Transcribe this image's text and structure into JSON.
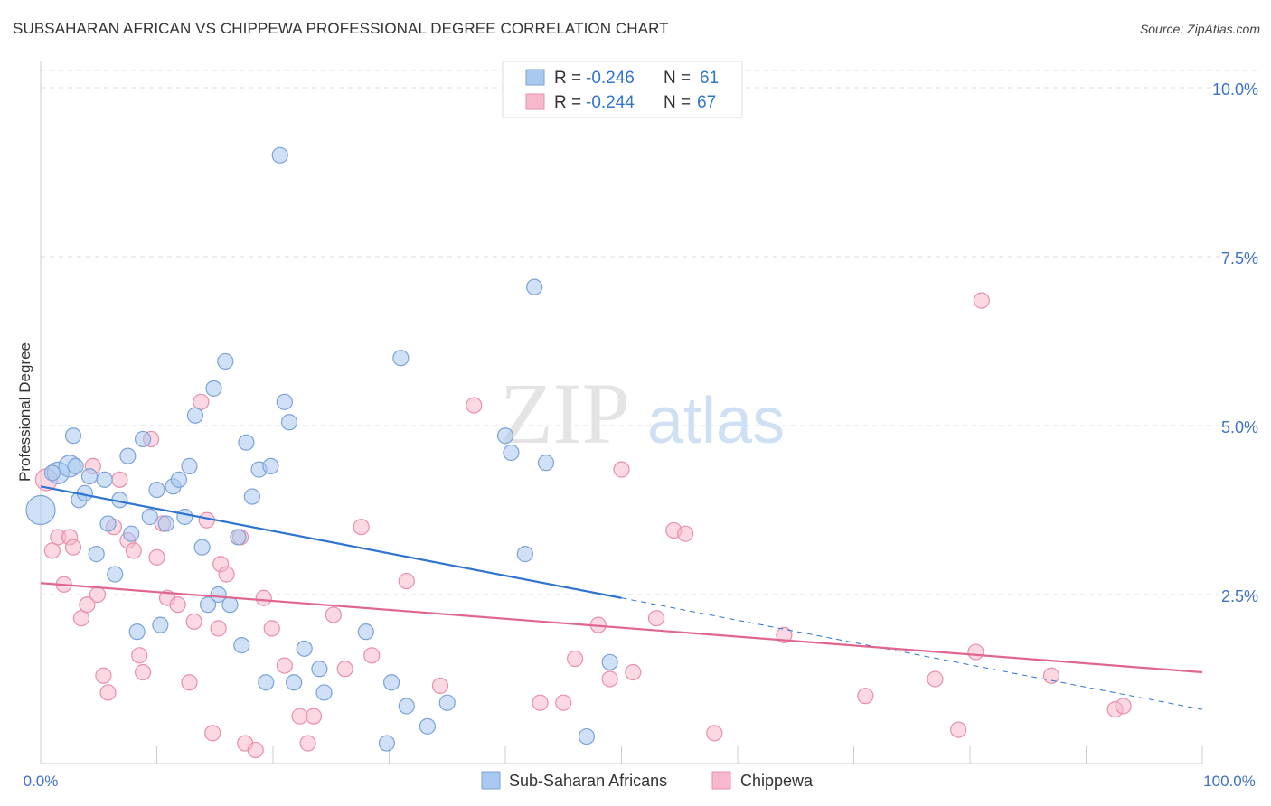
{
  "title": "SUBSAHARAN AFRICAN VS CHIPPEWA PROFESSIONAL DEGREE CORRELATION CHART",
  "source": "Source: ZipAtlas.com",
  "watermark": {
    "zip": "ZIP",
    "atlas": "atlas"
  },
  "colors": {
    "blue_fill": "#a9c8f0",
    "blue_stroke": "#7ba3d8",
    "blue_line": "#2f74d0",
    "pink_fill": "#f7b8cb",
    "pink_stroke": "#e88fac",
    "pink_line": "#e06690",
    "axis_label": "#3f73c4",
    "grid": "#dddddd"
  },
  "legend_top": {
    "rows": [
      {
        "r_label": "R =",
        "r_value": "-0.246",
        "n_label": "N =",
        "n_value": "61"
      },
      {
        "r_label": "R =",
        "r_value": "-0.244",
        "n_label": "N =",
        "n_value": "67"
      }
    ]
  },
  "legend_bottom": [
    "Sub-Saharan Africans",
    "Chippewa"
  ],
  "chart_data": {
    "type": "scatter",
    "title": "SUBSAHARAN AFRICAN VS CHIPPEWA PROFESSIONAL DEGREE CORRELATION CHART",
    "xlabel": "",
    "ylabel": "Professional Degree",
    "xlim": [
      0,
      100
    ],
    "ylim": [
      0,
      10.5
    ],
    "x_tick_labels": [
      "0.0%",
      "100.0%"
    ],
    "y_ticks": [
      2.5,
      5.0,
      7.5,
      10.0
    ],
    "y_tick_labels": [
      "2.5%",
      "5.0%",
      "7.5%",
      "10.0%"
    ],
    "grid": true,
    "legend_position": "top-center",
    "series": [
      {
        "name": "Sub-Saharan Africans",
        "r": -0.246,
        "n": 61,
        "trend": {
          "x0": 0,
          "y0": 4.1,
          "x1": 50,
          "y1": 2.45,
          "dash_to_x": 100,
          "dash_to_y": 0.8
        },
        "points": [
          [
            0,
            3.75,
            3
          ],
          [
            1.5,
            4.3,
            2
          ],
          [
            2.5,
            4.4,
            2
          ],
          [
            2.8,
            4.85,
            1
          ],
          [
            3.3,
            3.9,
            1
          ],
          [
            3.8,
            4.0,
            1
          ],
          [
            4.2,
            4.25,
            1
          ],
          [
            4.8,
            3.1,
            1
          ],
          [
            5.5,
            4.2,
            1
          ],
          [
            5.8,
            3.55,
            1
          ],
          [
            6.4,
            2.8,
            1
          ],
          [
            6.8,
            3.9,
            1
          ],
          [
            7.5,
            4.55,
            1
          ],
          [
            7.8,
            3.4,
            1
          ],
          [
            8.3,
            1.95,
            1
          ],
          [
            8.8,
            4.8,
            1
          ],
          [
            9.4,
            3.65,
            1
          ],
          [
            10.0,
            4.05,
            1
          ],
          [
            10.3,
            2.05,
            1
          ],
          [
            10.8,
            3.55,
            1
          ],
          [
            11.4,
            4.1,
            1
          ],
          [
            11.9,
            4.2,
            1
          ],
          [
            12.4,
            3.65,
            1
          ],
          [
            12.8,
            4.4,
            1
          ],
          [
            13.3,
            5.15,
            1
          ],
          [
            13.9,
            3.2,
            1
          ],
          [
            14.4,
            2.35,
            1
          ],
          [
            14.9,
            5.55,
            1
          ],
          [
            15.3,
            2.5,
            1
          ],
          [
            15.9,
            5.95,
            1
          ],
          [
            16.3,
            2.35,
            1
          ],
          [
            17.0,
            3.35,
            1
          ],
          [
            17.3,
            1.75,
            1
          ],
          [
            17.7,
            4.75,
            1
          ],
          [
            18.2,
            3.95,
            1
          ],
          [
            18.8,
            4.35,
            1
          ],
          [
            19.4,
            1.2,
            1
          ],
          [
            19.8,
            4.4,
            1
          ],
          [
            20.6,
            9.0,
            1
          ],
          [
            21.0,
            5.35,
            1
          ],
          [
            21.4,
            5.05,
            1
          ],
          [
            21.8,
            1.2,
            1
          ],
          [
            22.7,
            1.7,
            1
          ],
          [
            24.0,
            1.4,
            1
          ],
          [
            24.4,
            1.05,
            1
          ],
          [
            28.0,
            1.95,
            1
          ],
          [
            29.8,
            0.3,
            1
          ],
          [
            30.2,
            1.2,
            1
          ],
          [
            31.0,
            6.0,
            1
          ],
          [
            31.5,
            0.85,
            1
          ],
          [
            33.3,
            0.55,
            1
          ],
          [
            35.0,
            0.9,
            1
          ],
          [
            40.0,
            4.85,
            1
          ],
          [
            40.5,
            4.6,
            1
          ],
          [
            41.7,
            3.1,
            1
          ],
          [
            42.5,
            7.05,
            1
          ],
          [
            43.5,
            4.45,
            1
          ],
          [
            47.0,
            0.4,
            1
          ],
          [
            49.0,
            1.5,
            1
          ],
          [
            1.0,
            4.3,
            1
          ],
          [
            3.0,
            4.4,
            1
          ]
        ]
      },
      {
        "name": "Chippewa",
        "r": -0.244,
        "n": 67,
        "trend": {
          "x0": 0,
          "y0": 2.67,
          "x1": 100,
          "y1": 1.35
        },
        "points": [
          [
            0.5,
            4.2,
            2
          ],
          [
            1.0,
            3.15,
            1
          ],
          [
            1.5,
            3.35,
            1
          ],
          [
            2.0,
            2.65,
            1
          ],
          [
            2.5,
            3.35,
            1
          ],
          [
            2.8,
            3.2,
            1
          ],
          [
            3.5,
            2.15,
            1
          ],
          [
            4.0,
            2.35,
            1
          ],
          [
            4.5,
            4.4,
            1
          ],
          [
            4.9,
            2.5,
            1
          ],
          [
            5.4,
            1.3,
            1
          ],
          [
            5.8,
            1.05,
            1
          ],
          [
            6.3,
            3.5,
            1
          ],
          [
            6.8,
            4.2,
            1
          ],
          [
            7.5,
            3.3,
            1
          ],
          [
            8.0,
            3.15,
            1
          ],
          [
            8.5,
            1.6,
            1
          ],
          [
            8.8,
            1.35,
            1
          ],
          [
            9.5,
            4.8,
            1
          ],
          [
            10.0,
            3.05,
            1
          ],
          [
            10.5,
            3.55,
            1
          ],
          [
            10.9,
            2.45,
            1
          ],
          [
            11.8,
            2.35,
            1
          ],
          [
            12.8,
            1.2,
            1
          ],
          [
            13.2,
            2.1,
            1
          ],
          [
            13.8,
            5.35,
            1
          ],
          [
            14.3,
            3.6,
            1
          ],
          [
            14.8,
            0.45,
            1
          ],
          [
            15.3,
            2.0,
            1
          ],
          [
            15.5,
            2.95,
            1
          ],
          [
            16.0,
            2.8,
            1
          ],
          [
            17.2,
            3.35,
            1
          ],
          [
            17.6,
            0.3,
            1
          ],
          [
            18.5,
            0.2,
            1
          ],
          [
            19.2,
            2.45,
            1
          ],
          [
            19.9,
            2.0,
            1
          ],
          [
            21.0,
            1.45,
            1
          ],
          [
            22.3,
            0.7,
            1
          ],
          [
            23.0,
            0.3,
            1
          ],
          [
            23.5,
            0.7,
            1
          ],
          [
            25.2,
            2.2,
            1
          ],
          [
            26.2,
            1.4,
            1
          ],
          [
            27.6,
            3.5,
            1
          ],
          [
            28.5,
            1.6,
            1
          ],
          [
            31.5,
            2.7,
            1
          ],
          [
            34.4,
            1.15,
            1
          ],
          [
            37.3,
            5.3,
            1
          ],
          [
            43.0,
            0.9,
            1
          ],
          [
            45.0,
            0.9,
            1
          ],
          [
            46.0,
            1.55,
            1
          ],
          [
            48.0,
            2.05,
            1
          ],
          [
            49.0,
            1.25,
            1
          ],
          [
            50.0,
            4.35,
            1
          ],
          [
            51.0,
            1.35,
            1
          ],
          [
            53.0,
            2.15,
            1
          ],
          [
            54.5,
            3.45,
            1
          ],
          [
            55.5,
            3.4,
            1
          ],
          [
            58.0,
            0.45,
            1
          ],
          [
            64.0,
            1.9,
            1
          ],
          [
            71.0,
            1.0,
            1
          ],
          [
            77.0,
            1.25,
            1
          ],
          [
            79.0,
            0.5,
            1
          ],
          [
            80.5,
            1.65,
            1
          ],
          [
            81.0,
            6.85,
            1
          ],
          [
            87.0,
            1.3,
            1
          ],
          [
            92.5,
            0.8,
            1
          ],
          [
            93.2,
            0.85,
            1
          ]
        ]
      }
    ]
  }
}
